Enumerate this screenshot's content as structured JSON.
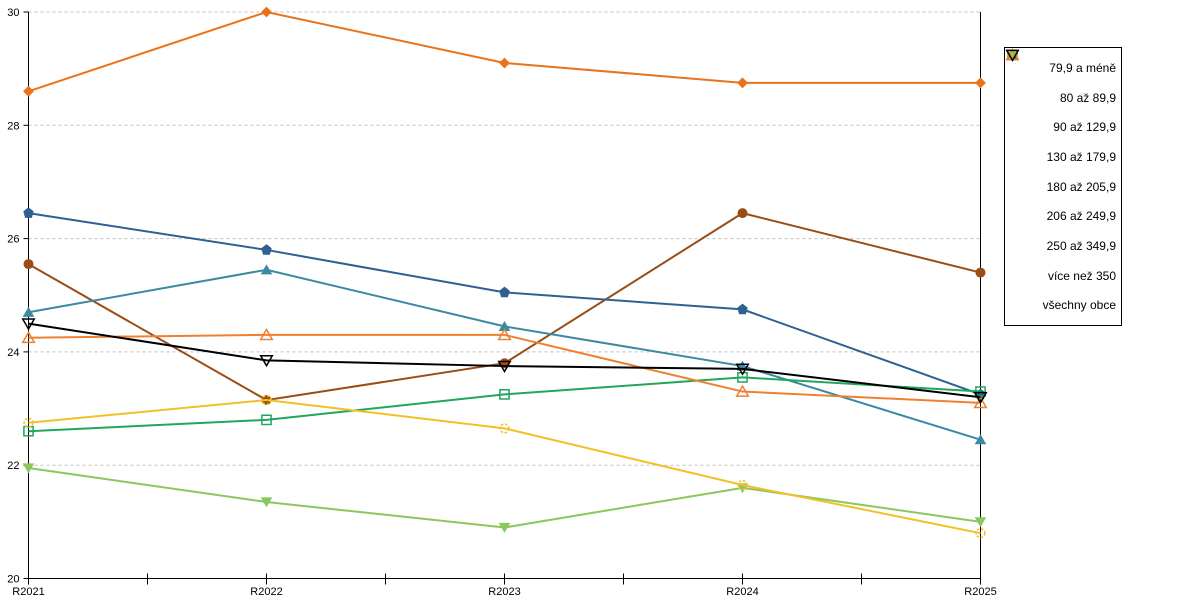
{
  "chart_data": {
    "type": "line",
    "title": "",
    "xlabel": "",
    "ylabel": "",
    "x": [
      "R2021",
      "R2022",
      "R2023",
      "R2024",
      "R2025"
    ],
    "ylim": [
      20,
      30
    ],
    "yticks": [
      20,
      22,
      24,
      26,
      28,
      30
    ],
    "grid": "horizontal-dashed",
    "grid_color": "#BFBFBF",
    "axis_color": "#000000",
    "background": "#FFFFFF",
    "legend_position": "right",
    "series": [
      {
        "name": "79,9 a méně",
        "color": "#E8731A",
        "marker": "diamond",
        "fill": "filled",
        "values": [
          28.6,
          30.0,
          29.1,
          28.75,
          28.75
        ]
      },
      {
        "name": "80 až 89,9",
        "color": "#9A4D14",
        "marker": "circle",
        "fill": "filled",
        "values": [
          25.55,
          23.15,
          23.8,
          26.45,
          25.4
        ]
      },
      {
        "name": "90 až 129,9",
        "color": "#3C89A2",
        "marker": "triangle-up",
        "fill": "filled",
        "values": [
          24.7,
          25.45,
          24.45,
          23.75,
          22.45
        ]
      },
      {
        "name": "130 až 179,9",
        "color": "#2E6093",
        "marker": "pentagon",
        "fill": "filled",
        "values": [
          26.45,
          25.8,
          25.05,
          24.75,
          23.25
        ]
      },
      {
        "name": "180 až 205,9",
        "color": "#8AC85E",
        "marker": "triangle-down",
        "fill": "filled",
        "values": [
          21.95,
          21.35,
          20.9,
          21.6,
          21.0
        ]
      },
      {
        "name": "206 až 249,9",
        "color": "#21A65E",
        "marker": "square",
        "fill": "open",
        "values": [
          22.6,
          22.8,
          23.25,
          23.55,
          23.3
        ]
      },
      {
        "name": "250 až 349,9",
        "color": "#F2C029",
        "marker": "circle-dashed",
        "fill": "open",
        "values": [
          22.75,
          23.15,
          22.65,
          21.65,
          20.8
        ]
      },
      {
        "name": "více než 350",
        "color": "#F08030",
        "marker": "triangle-up",
        "fill": "open",
        "values": [
          24.25,
          24.3,
          24.3,
          23.3,
          23.1
        ]
      },
      {
        "name": "všechny obce",
        "color": "#000000",
        "marker": "triangle-down",
        "fill": "open",
        "values": [
          24.5,
          23.85,
          23.75,
          23.7,
          23.2
        ]
      }
    ]
  }
}
